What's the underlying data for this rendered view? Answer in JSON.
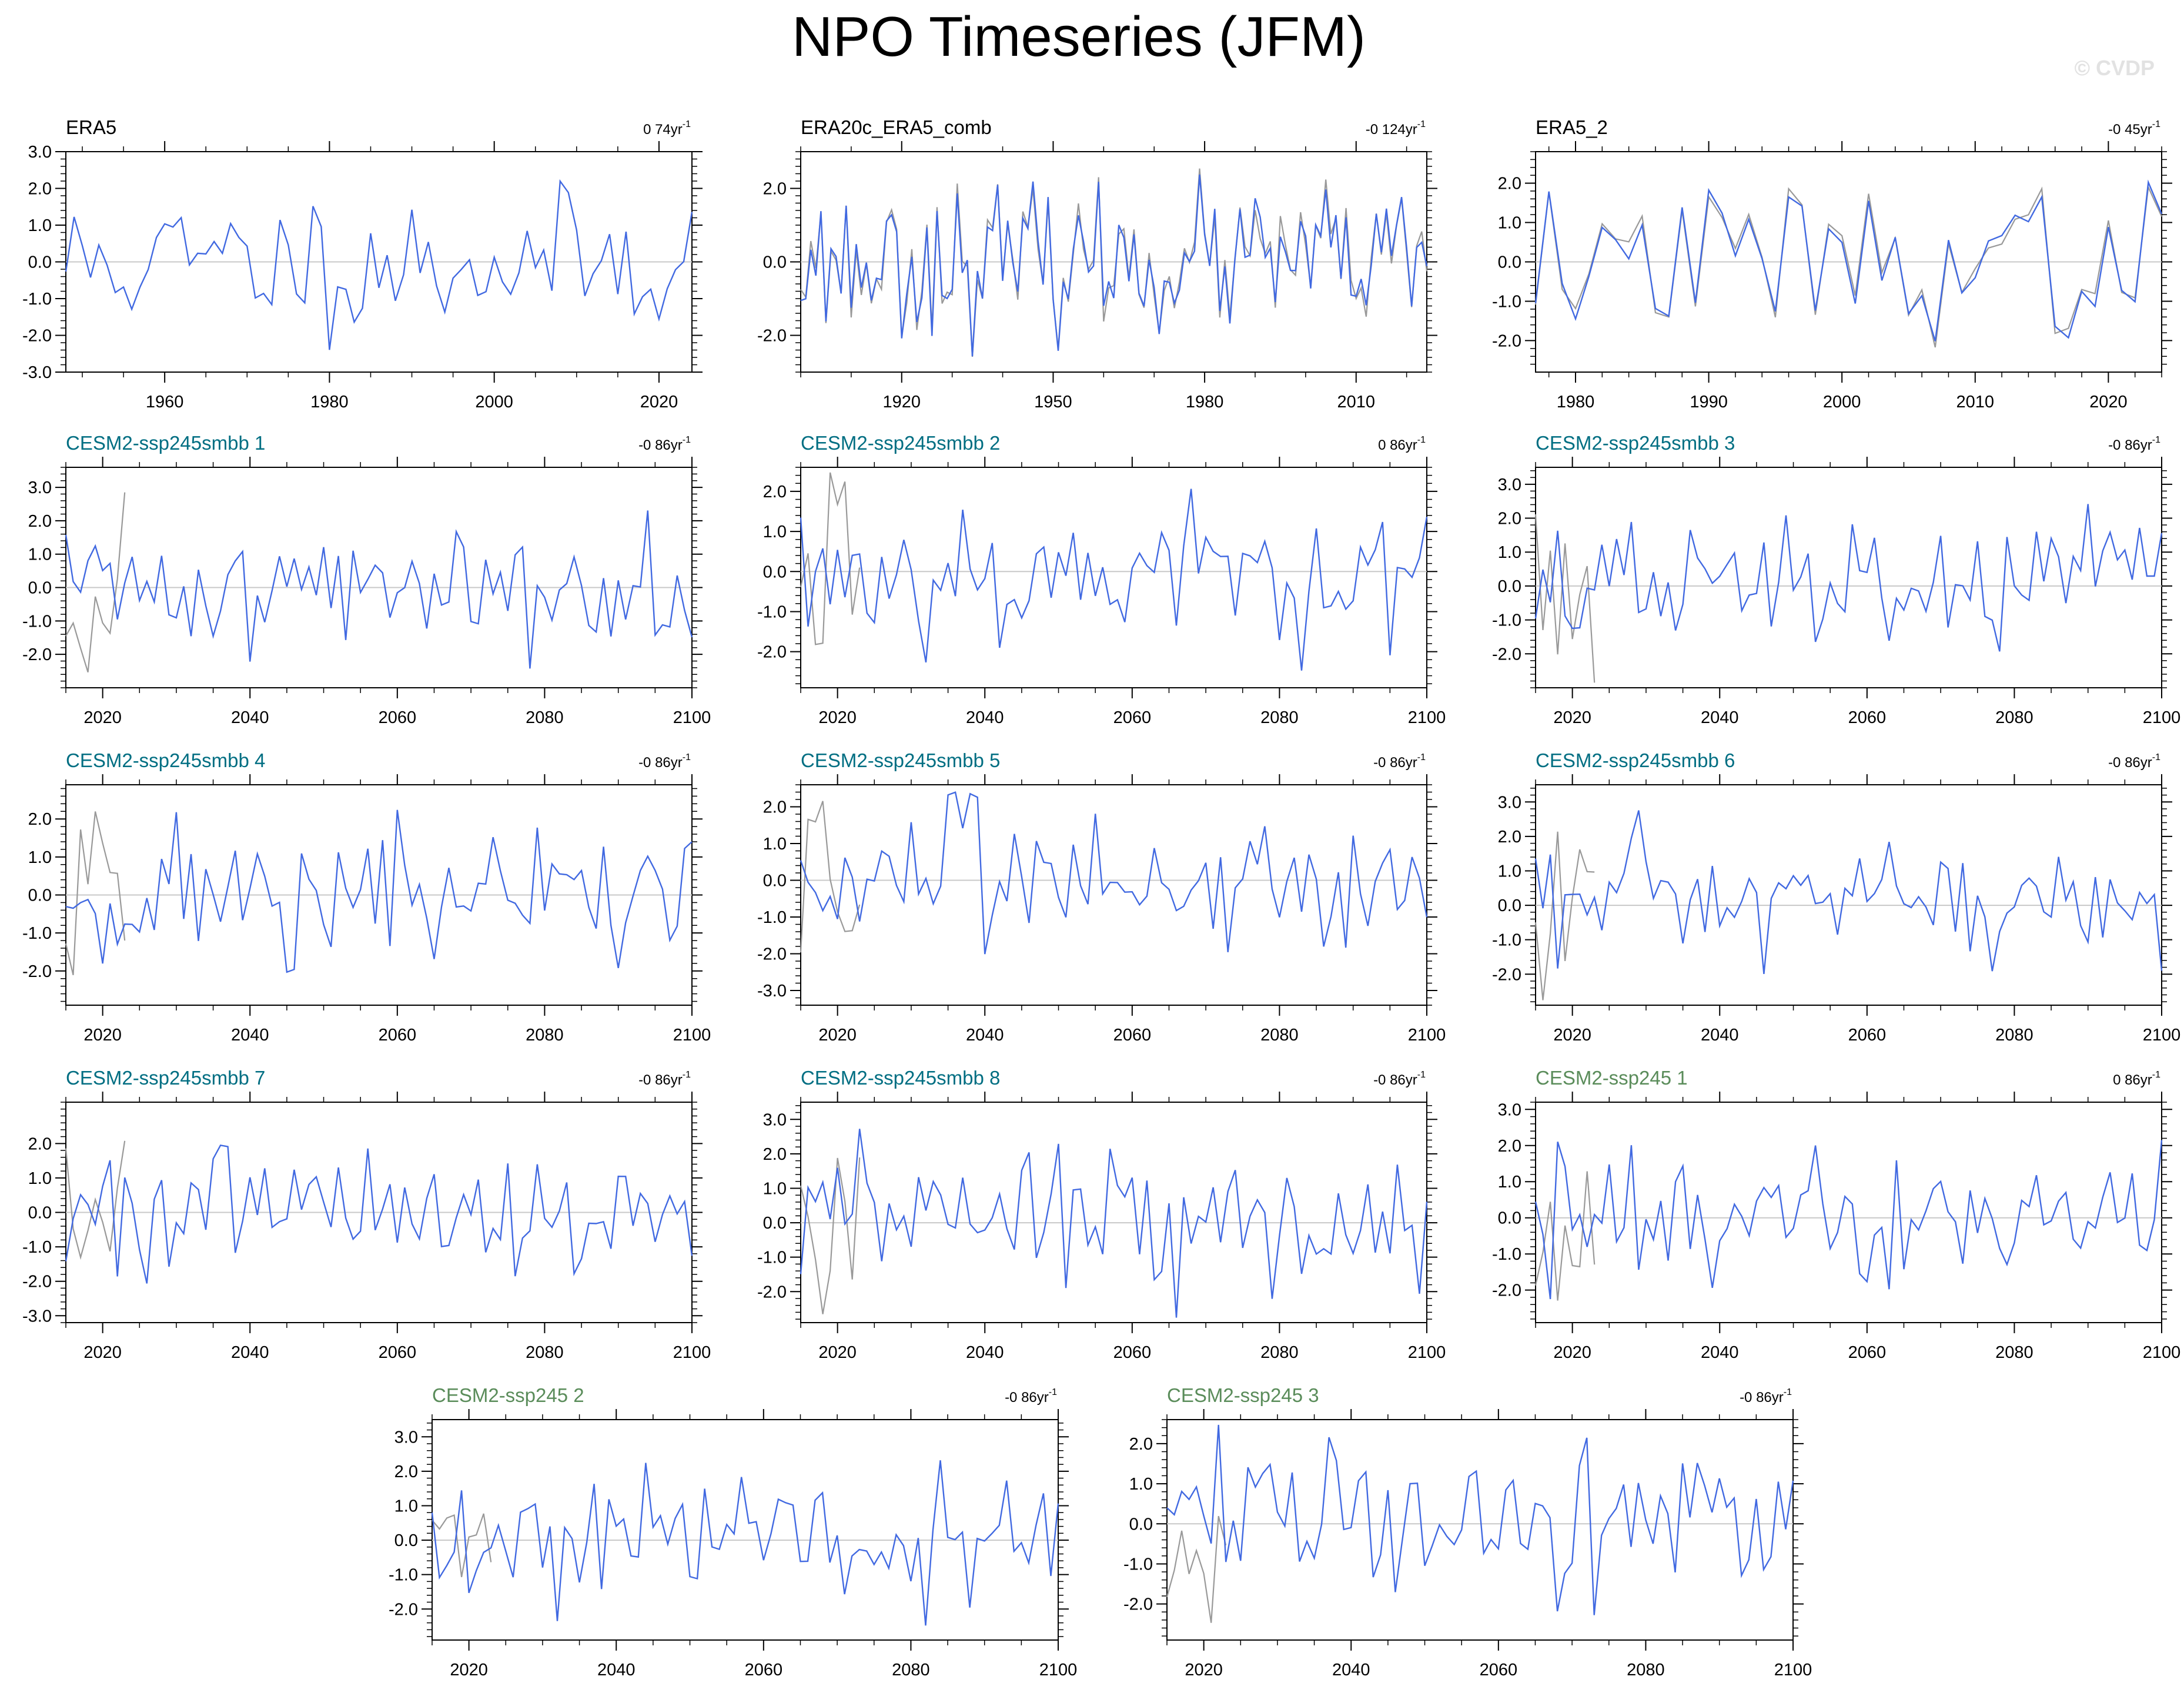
{
  "figure": {
    "title": "NPO Timeseries (JFM)",
    "watermark": "© CVDP"
  },
  "colors": {
    "model_line": "#4169e1",
    "obs_line": "#999999",
    "zero_line": "#c8c8c8",
    "title_obs": "#000000",
    "title_smbb": "#006e82",
    "title_ssp245": "#5a8c5a"
  },
  "chart_data": [
    {
      "type": "line",
      "title": "ERA5",
      "trend": "0 74yr",
      "trend_unit_sup": "-1",
      "title_kind": "obs",
      "xlim": [
        1948,
        2024
      ],
      "xticks": [
        1960,
        1980,
        2000,
        2020
      ],
      "ylim": [
        -3,
        3
      ],
      "yticks": [
        "3.0",
        "2.0",
        "1.0",
        "0.0",
        "-1.0",
        "-2.0",
        "-3.0"
      ],
      "seed": 11,
      "amp": 1.0,
      "has_obs_overlay": false
    },
    {
      "type": "line",
      "title": "ERA20c_ERA5_comb",
      "trend": "-0 124yr",
      "trend_unit_sup": "-1",
      "title_kind": "obs",
      "xlim": [
        1900,
        2024
      ],
      "xticks": [
        1920,
        1950,
        1980,
        2010
      ],
      "ylim": [
        -3,
        3
      ],
      "yticks": [
        "2.0",
        "0.0",
        "-2.0"
      ],
      "seed": 23,
      "amp": 1.0,
      "has_obs_overlay": true
    },
    {
      "type": "line",
      "title": "ERA5_2",
      "trend": "-0 45yr",
      "trend_unit_sup": "-1",
      "title_kind": "obs",
      "xlim": [
        1977,
        2024
      ],
      "xticks": [
        1980,
        1990,
        2000,
        2010,
        2020
      ],
      "ylim": [
        -2.8,
        2.8
      ],
      "yticks": [
        "2.0",
        "1.0",
        "0.0",
        "-1.0",
        "-2.0"
      ],
      "seed": 37,
      "amp": 1.0,
      "has_obs_overlay": true
    },
    {
      "type": "line",
      "title": "CESM2-ssp245smbb 1",
      "trend": "-0 86yr",
      "trend_unit_sup": "-1",
      "title_kind": "smbb",
      "xlim": [
        2015,
        2100
      ],
      "xticks": [
        2020,
        2040,
        2060,
        2080,
        2100
      ],
      "ylim": [
        -3,
        3.6
      ],
      "yticks": [
        "3.0",
        "2.0",
        "1.0",
        "0.0",
        "-1.0",
        "-2.0"
      ],
      "seed": 41,
      "amp": 1.0,
      "has_obs_overlay": true
    },
    {
      "type": "line",
      "title": "CESM2-ssp245smbb 2",
      "trend": "0 86yr",
      "trend_unit_sup": "-1",
      "title_kind": "smbb",
      "xlim": [
        2015,
        2100
      ],
      "xticks": [
        2020,
        2040,
        2060,
        2080,
        2100
      ],
      "ylim": [
        -2.9,
        2.6
      ],
      "yticks": [
        "2.0",
        "1.0",
        "0.0",
        "-1.0",
        "-2.0"
      ],
      "seed": 53,
      "amp": 1.0,
      "has_obs_overlay": true
    },
    {
      "type": "line",
      "title": "CESM2-ssp245smbb 3",
      "trend": "-0 86yr",
      "trend_unit_sup": "-1",
      "title_kind": "smbb",
      "xlim": [
        2015,
        2100
      ],
      "xticks": [
        2020,
        2040,
        2060,
        2080,
        2100
      ],
      "ylim": [
        -3,
        3.5
      ],
      "yticks": [
        "3.0",
        "2.0",
        "1.0",
        "0.0",
        "-1.0",
        "-2.0"
      ],
      "seed": 67,
      "amp": 1.0,
      "has_obs_overlay": true
    },
    {
      "type": "line",
      "title": "CESM2-ssp245smbb 4",
      "trend": "-0 86yr",
      "trend_unit_sup": "-1",
      "title_kind": "smbb",
      "xlim": [
        2015,
        2100
      ],
      "xticks": [
        2020,
        2040,
        2060,
        2080,
        2100
      ],
      "ylim": [
        -2.9,
        2.9
      ],
      "yticks": [
        "2.0",
        "1.0",
        "0.0",
        "-1.0",
        "-2.0"
      ],
      "seed": 71,
      "amp": 1.0,
      "has_obs_overlay": true
    },
    {
      "type": "line",
      "title": "CESM2-ssp245smbb 5",
      "trend": "-0 86yr",
      "trend_unit_sup": "-1",
      "title_kind": "smbb",
      "xlim": [
        2015,
        2100
      ],
      "xticks": [
        2020,
        2040,
        2060,
        2080,
        2100
      ],
      "ylim": [
        -3.4,
        2.6
      ],
      "yticks": [
        "2.0",
        "1.0",
        "0.0",
        "-1.0",
        "-2.0",
        "-3.0"
      ],
      "seed": 83,
      "amp": 1.0,
      "has_obs_overlay": true
    },
    {
      "type": "line",
      "title": "CESM2-ssp245smbb 6",
      "trend": "-0 86yr",
      "trend_unit_sup": "-1",
      "title_kind": "smbb",
      "xlim": [
        2015,
        2100
      ],
      "xticks": [
        2020,
        2040,
        2060,
        2080,
        2100
      ],
      "ylim": [
        -2.9,
        3.5
      ],
      "yticks": [
        "3.0",
        "2.0",
        "1.0",
        "0.0",
        "-1.0",
        "-2.0"
      ],
      "seed": 97,
      "amp": 1.0,
      "has_obs_overlay": true
    },
    {
      "type": "line",
      "title": "CESM2-ssp245smbb 7",
      "trend": "-0 86yr",
      "trend_unit_sup": "-1",
      "title_kind": "smbb",
      "xlim": [
        2015,
        2100
      ],
      "xticks": [
        2020,
        2040,
        2060,
        2080,
        2100
      ],
      "ylim": [
        -3.2,
        3.2
      ],
      "yticks": [
        "2.0",
        "1.0",
        "0.0",
        "-1.0",
        "-2.0",
        "-3.0"
      ],
      "seed": 101,
      "amp": 1.0,
      "has_obs_overlay": true
    },
    {
      "type": "line",
      "title": "CESM2-ssp245smbb 8",
      "trend": "-0 86yr",
      "trend_unit_sup": "-1",
      "title_kind": "smbb",
      "xlim": [
        2015,
        2100
      ],
      "xticks": [
        2020,
        2040,
        2060,
        2080,
        2100
      ],
      "ylim": [
        -2.9,
        3.5
      ],
      "yticks": [
        "3.0",
        "2.0",
        "1.0",
        "0.0",
        "-1.0",
        "-2.0"
      ],
      "seed": 113,
      "amp": 1.0,
      "has_obs_overlay": true
    },
    {
      "type": "line",
      "title": "CESM2-ssp245 1",
      "trend": "0 86yr",
      "trend_unit_sup": "-1",
      "title_kind": "ssp245",
      "xlim": [
        2015,
        2100
      ],
      "xticks": [
        2020,
        2040,
        2060,
        2080,
        2100
      ],
      "ylim": [
        -2.9,
        3.2
      ],
      "yticks": [
        "3.0",
        "2.0",
        "1.0",
        "0.0",
        "-1.0",
        "-2.0"
      ],
      "seed": 127,
      "amp": 1.0,
      "has_obs_overlay": true
    },
    {
      "type": "line",
      "title": "CESM2-ssp245 2",
      "trend": "-0 86yr",
      "trend_unit_sup": "-1",
      "title_kind": "ssp245",
      "xlim": [
        2015,
        2100
      ],
      "xticks": [
        2020,
        2040,
        2060,
        2080,
        2100
      ],
      "ylim": [
        -2.9,
        3.5
      ],
      "yticks": [
        "3.0",
        "2.0",
        "1.0",
        "0.0",
        "-1.0",
        "-2.0"
      ],
      "seed": 131,
      "amp": 1.0,
      "has_obs_overlay": true
    },
    {
      "type": "line",
      "title": "CESM2-ssp245 3",
      "trend": "-0 86yr",
      "trend_unit_sup": "-1",
      "title_kind": "ssp245",
      "xlim": [
        2015,
        2100
      ],
      "xticks": [
        2020,
        2040,
        2060,
        2080,
        2100
      ],
      "ylim": [
        -2.9,
        2.6
      ],
      "yticks": [
        "2.0",
        "1.0",
        "0.0",
        "-1.0",
        "-2.0"
      ],
      "seed": 149,
      "amp": 1.0,
      "has_obs_overlay": true
    }
  ]
}
